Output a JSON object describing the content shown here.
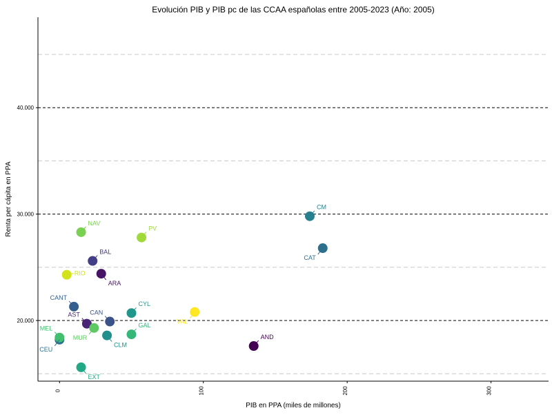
{
  "chart_data": {
    "type": "scatter",
    "title": "Evolución PIB y PIB pc de las CCAA españolas entre 2005-2023 (Año: 2005)",
    "xlabel": "PIB en PPA (miles de millones)",
    "ylabel": "Renta per cápita en PPA",
    "xlim": [
      -15,
      340
    ],
    "ylim": [
      14300,
      48500
    ],
    "x_ticks": [
      {
        "value": 0,
        "label": "0"
      },
      {
        "value": 100,
        "label": "100"
      },
      {
        "value": 200,
        "label": "200"
      },
      {
        "value": 300,
        "label": "300"
      }
    ],
    "y_ticks": [
      {
        "value": 20000,
        "label": "20.000"
      },
      {
        "value": 30000,
        "label": "30.000"
      },
      {
        "value": 40000,
        "label": "40.000"
      }
    ],
    "grid": {
      "major_y": [
        20000,
        30000,
        40000
      ],
      "minor_y": [
        15000,
        25000,
        35000,
        45000
      ]
    },
    "points": [
      {
        "label": "AND",
        "x": 135,
        "y": 17600,
        "color": "#440154",
        "label_pos": "upper-right"
      },
      {
        "label": "ARA",
        "x": 29,
        "y": 24400,
        "color": "#471365",
        "label_pos": "lower-right"
      },
      {
        "label": "AST",
        "x": 19,
        "y": 19700,
        "color": "#482576",
        "label_pos": "upper-left"
      },
      {
        "label": "BAL",
        "x": 23,
        "y": 25600,
        "color": "#433e85",
        "label_pos": "upper-right"
      },
      {
        "label": "CAN",
        "x": 35,
        "y": 19900,
        "color": "#3b528b",
        "label_pos": "upper-left"
      },
      {
        "label": "CANT",
        "x": 10,
        "y": 21300,
        "color": "#355f8d",
        "label_pos": "upper-left"
      },
      {
        "label": "CAT",
        "x": 183,
        "y": 26800,
        "color": "#2d708e",
        "label_pos": "lower-left"
      },
      {
        "label": "CEU",
        "x": 0,
        "y": 18200,
        "color": "#2c728e",
        "label_pos": "lower-left"
      },
      {
        "label": "CLM",
        "x": 33,
        "y": 18600,
        "color": "#21908d",
        "label_pos": "lower-right"
      },
      {
        "label": "CM",
        "x": 174,
        "y": 29800,
        "color": "#27808e",
        "label_pos": "upper-right"
      },
      {
        "label": "CYL",
        "x": 50,
        "y": 20700,
        "color": "#1f988b",
        "label_pos": "upper-right"
      },
      {
        "label": "EXT",
        "x": 15,
        "y": 15600,
        "color": "#22a884",
        "label_pos": "lower-right"
      },
      {
        "label": "GAL",
        "x": 50,
        "y": 18700,
        "color": "#35b779",
        "label_pos": "upper-right"
      },
      {
        "label": "MEL",
        "x": 0,
        "y": 18400,
        "color": "#44bf70",
        "label_pos": "upper-left"
      },
      {
        "label": "MUR",
        "x": 24,
        "y": 19300,
        "color": "#5ec962",
        "label_pos": "lower-left"
      },
      {
        "label": "NAV",
        "x": 15,
        "y": 28300,
        "color": "#7ad151",
        "label_pos": "upper-right"
      },
      {
        "label": "PV",
        "x": 57,
        "y": 27800,
        "color": "#9fda3a",
        "label_pos": "upper-right"
      },
      {
        "label": "RIO",
        "x": 5,
        "y": 24300,
        "color": "#d2e21b",
        "label_pos": "right"
      },
      {
        "label": "VAL",
        "x": 94,
        "y": 20800,
        "color": "#fde725",
        "label_pos": "lower-left"
      }
    ]
  }
}
